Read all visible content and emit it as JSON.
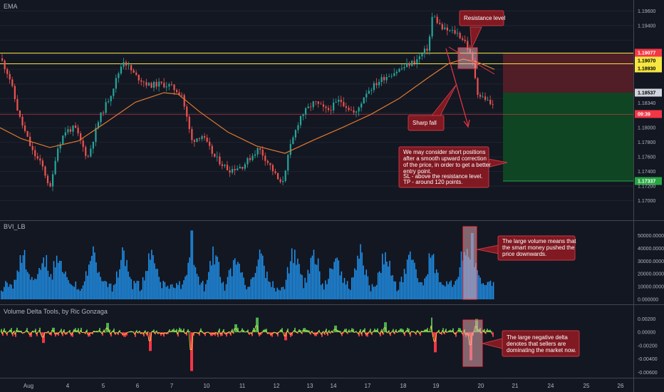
{
  "chart_data": [
    {
      "type": "candlestick",
      "indicator": "EMA",
      "price_axis_ticks": [
        "1.19600",
        "1.19400",
        "1.19077",
        "1.19070",
        "1.18930",
        "1.18537",
        "1.18340",
        "09:39",
        "1.18000",
        "1.17800",
        "1.17600",
        "1.17400",
        "1.17337",
        "1.17200",
        "1.17000"
      ],
      "date_axis_ticks": [
        "Aug",
        "4",
        "5",
        "6",
        "7",
        "10",
        "11",
        "12",
        "13",
        "14",
        "17",
        "18",
        "19",
        "20",
        "21",
        "24",
        "25",
        "26"
      ],
      "ylim": [
        1.1685,
        1.1975
      ],
      "levels": {
        "resistance_top": 1.19077,
        "resistance_bottom": 1.1893,
        "resistance_mid": 1.1907,
        "current_price": 1.18537,
        "take_profit": 1.17337
      },
      "price_tags": [
        {
          "text": "1.19077",
          "bg": "#f23645",
          "fg": "#ffffff"
        },
        {
          "text": "1.19070",
          "bg": "#f5e642",
          "fg": "#000000"
        },
        {
          "text": "1.18930",
          "bg": "#f5e642",
          "fg": "#000000"
        },
        {
          "text": "1.18537",
          "bg": "#d1d4dc",
          "fg": "#000000"
        },
        {
          "text": "09:39",
          "bg": "#f23645",
          "fg": "#ffffff"
        },
        {
          "text": "1.17337",
          "bg": "#26a641",
          "fg": "#ffffff"
        }
      ],
      "annotations": {
        "resistance": "Resistance level",
        "sharp_fall": "Sharp fall",
        "plan": [
          "We may consider short positions",
          "after a smooth upward correction",
          "of the price, in order to get a better",
          "entry point.",
          "SL - above the resistance level.",
          "TP - around 120 points."
        ]
      },
      "colors": {
        "up": "#26a69a",
        "down": "#ef5350",
        "ema": "#e07a2f",
        "resistance_line": "#f5e642"
      }
    },
    {
      "type": "bar",
      "indicator": "BVI_LB",
      "ticks": [
        "50000.000000",
        "40000.000000",
        "30000.000000",
        "20000.000000",
        "10000.000000",
        "0.000000"
      ],
      "ylim": [
        0,
        57000
      ],
      "annotation": [
        "The large volume means that",
        "the smart money pushed the",
        "price downwards."
      ],
      "colors": {
        "bar": "#2196f3"
      }
    },
    {
      "type": "area",
      "indicator": "Volume Delta Tools, by Ric Gonzaga",
      "ticks": [
        "0.00200",
        "0.00000",
        "-0.00200",
        "-0.00400",
        "-0.00600"
      ],
      "ylim": [
        -0.0066,
        0.0028
      ],
      "annotation": [
        "The large negative delta",
        "denotes that sellers are",
        "dominating the market now."
      ],
      "colors": {
        "positive": "#4caf50",
        "negative": "#f23645",
        "line": "#e8e842"
      }
    }
  ]
}
